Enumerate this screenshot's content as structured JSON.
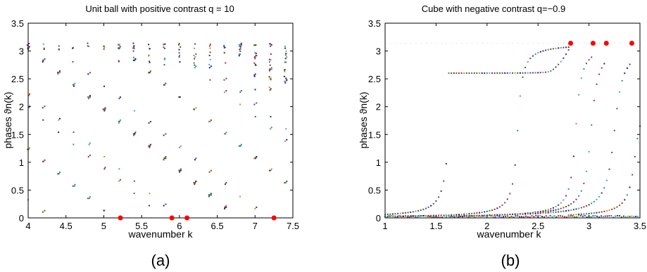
{
  "chart_data": [
    {
      "type": "scatter",
      "panel_label": "(a)",
      "title": "Unit ball with positive contrast q = 10",
      "xlabel": "wavenumber k",
      "ylabel": "phases ϑn(k)",
      "xlim": [
        4,
        7.5
      ],
      "ylim": [
        0,
        3.5
      ],
      "xticks": [
        "4",
        "4.5",
        "5",
        "5.5",
        "6",
        "6.5",
        "7",
        "7.5"
      ],
      "yticks": [
        "0",
        "0.5",
        "1",
        "1.5",
        "2",
        "2.5",
        "3",
        "3.5"
      ],
      "grid": false,
      "markers": {
        "x": [
          5.22,
          5.9,
          6.1,
          7.25
        ],
        "y": [
          0,
          0,
          0,
          0
        ]
      }
    },
    {
      "type": "scatter",
      "panel_label": "(b)",
      "title": "Cube with negative contrast q=−0.9",
      "xlabel": "wavenumber k",
      "ylabel": "phases ϑn(k)",
      "xlim": [
        1,
        3.5
      ],
      "ylim": [
        0,
        3.5
      ],
      "xticks": [
        "1",
        "1.5",
        "2",
        "2.5",
        "3",
        "3.5"
      ],
      "yticks": [
        "0",
        "0.5",
        "1",
        "1.5",
        "2",
        "2.5",
        "3",
        "3.5"
      ],
      "grid": false,
      "markers": {
        "x": [
          2.82,
          3.04,
          3.17,
          3.42
        ],
        "y": [
          3.14,
          3.14,
          3.14,
          3.14
        ]
      }
    }
  ],
  "colors": {
    "points": [
      "#1a1aa6",
      "#2a8f8f",
      "#8a4a2a",
      "#7a2a8a",
      "#2a7a2a",
      "#aa3030",
      "#c89020",
      "#3a3a3a",
      "#3aaad0"
    ],
    "marker": "#ff0000"
  }
}
